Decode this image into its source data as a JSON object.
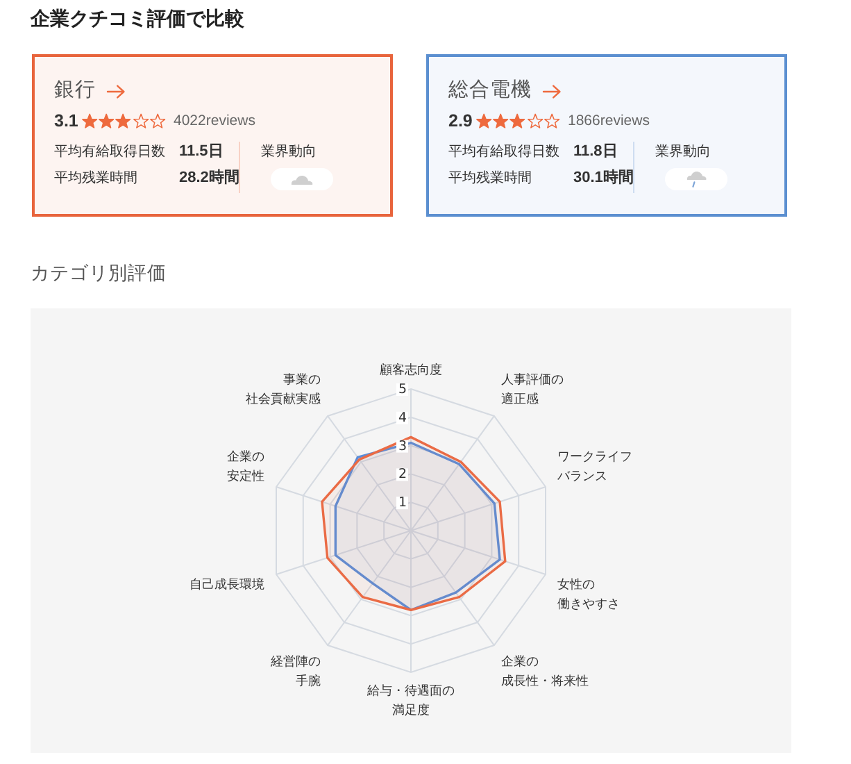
{
  "chart_data": [
    {
      "type": "other",
      "title": "企業クチコミ評価で比較",
      "subtitle": "銀行",
      "color": "#e8643c",
      "annotations": [
        "3.1",
        "4022reviews",
        "平均有給取得日数",
        "11.5日",
        "平均残業時間",
        "28.2時間",
        "業界動向"
      ]
    },
    {
      "type": "other",
      "subtitle": "総合電機",
      "color": "#5b8fd0",
      "annotations": [
        "2.9",
        "1866reviews",
        "平均有給取得日数",
        "11.8日",
        "平均残業時間",
        "30.1時間",
        "業界動向"
      ]
    },
    {
      "type": "radar",
      "title": "カテゴリ別評価",
      "categories": [
        "顧客志向度",
        "人事評価の適正感",
        "ワークライフバランス",
        "女性の働きやすさ",
        "企業の成長性・将来性",
        "給与・待遇面の満足度",
        "経営陣の手腕",
        "自己成長環境",
        "企業の安定性",
        "事業の社会貢献実感"
      ],
      "series": [
        {
          "color": "#ea6b45",
          "values": [
            3.3,
            3.0,
            3.3,
            3.5,
            2.9,
            2.8,
            2.9,
            3.1,
            3.3,
            3.1
          ]
        },
        {
          "color": "#5b8dd8",
          "values": [
            3.1,
            2.9,
            3.1,
            3.3,
            2.7,
            2.8,
            2.3,
            2.8,
            2.8,
            3.2
          ]
        }
      ],
      "ylim": [
        0,
        5
      ],
      "yticks": [
        1,
        2,
        3,
        4,
        5
      ],
      "grid": true
    }
  ]
}
